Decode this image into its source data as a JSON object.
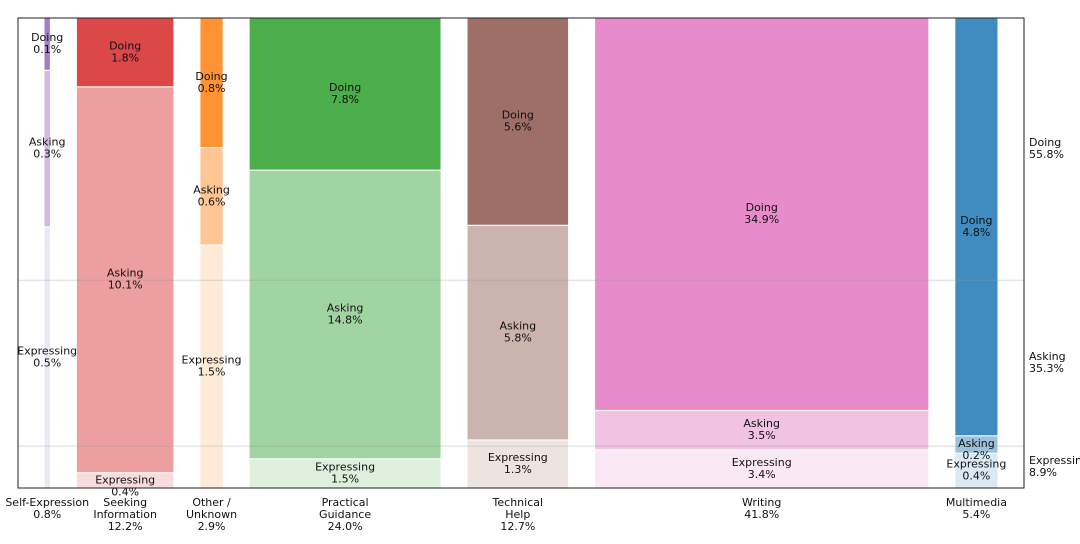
{
  "chart_data": {
    "type": "bar",
    "subtype": "mosaic",
    "title": "",
    "xlabel": "",
    "ylabel": "",
    "segment_order_bottom_to_top": [
      "Expressing",
      "Asking",
      "Doing"
    ],
    "categories": [
      {
        "label": "Self-Expression",
        "share": "0.8%",
        "share_value": 0.8,
        "color": "#9467bd",
        "segments": [
          {
            "label": "Doing",
            "value": 0.1,
            "pct": "0.1%"
          },
          {
            "label": "Asking",
            "value": 0.3,
            "pct": "0.3%"
          },
          {
            "label": "Expressing",
            "value": 0.5,
            "pct": "0.5%"
          }
        ]
      },
      {
        "label": "Seeking\nInformation",
        "share": "12.2%",
        "share_value": 12.2,
        "color": "#d62728",
        "segments": [
          {
            "label": "Doing",
            "value": 1.8,
            "pct": "1.8%"
          },
          {
            "label": "Asking",
            "value": 10.1,
            "pct": "10.1%"
          },
          {
            "label": "Expressing",
            "value": 0.4,
            "pct": "0.4%"
          }
        ]
      },
      {
        "label": "Other /\nUnknown",
        "share": "2.9%",
        "share_value": 2.9,
        "color": "#ff7f0e",
        "segments": [
          {
            "label": "Doing",
            "value": 0.8,
            "pct": "0.8%"
          },
          {
            "label": "Asking",
            "value": 0.6,
            "pct": "0.6%"
          },
          {
            "label": "Expressing",
            "value": 1.5,
            "pct": "1.5%"
          }
        ]
      },
      {
        "label": "Practical\nGuidance",
        "share": "24.0%",
        "share_value": 24.0,
        "color": "#2ca02c",
        "segments": [
          {
            "label": "Doing",
            "value": 7.8,
            "pct": "7.8%"
          },
          {
            "label": "Asking",
            "value": 14.8,
            "pct": "14.8%"
          },
          {
            "label": "Expressing",
            "value": 1.5,
            "pct": "1.5%"
          }
        ]
      },
      {
        "label": "Technical\nHelp",
        "share": "12.7%",
        "share_value": 12.7,
        "color": "#8c564b",
        "segments": [
          {
            "label": "Doing",
            "value": 5.6,
            "pct": "5.6%"
          },
          {
            "label": "Asking",
            "value": 5.8,
            "pct": "5.8%"
          },
          {
            "label": "Expressing",
            "value": 1.3,
            "pct": "1.3%"
          }
        ]
      },
      {
        "label": "Writing",
        "share": "41.8%",
        "share_value": 41.8,
        "color": "#e377c2",
        "segments": [
          {
            "label": "Doing",
            "value": 34.9,
            "pct": "34.9%"
          },
          {
            "label": "Asking",
            "value": 3.5,
            "pct": "3.5%"
          },
          {
            "label": "Expressing",
            "value": 3.4,
            "pct": "3.4%"
          }
        ]
      },
      {
        "label": "Multimedia",
        "share": "5.4%",
        "share_value": 5.4,
        "color": "#1f77b4",
        "segments": [
          {
            "label": "Doing",
            "value": 4.8,
            "pct": "4.8%"
          },
          {
            "label": "Asking",
            "value": 0.2,
            "pct": "0.2%"
          },
          {
            "label": "Expressing",
            "value": 0.4,
            "pct": "0.4%"
          }
        ]
      }
    ],
    "totals": [
      {
        "label": "Doing",
        "pct": "55.8%",
        "value": 55.8
      },
      {
        "label": "Asking",
        "pct": "35.3%",
        "value": 35.3
      },
      {
        "label": "Expressing",
        "pct": "8.9%",
        "value": 8.9
      }
    ],
    "grid": false,
    "legend": "none"
  }
}
